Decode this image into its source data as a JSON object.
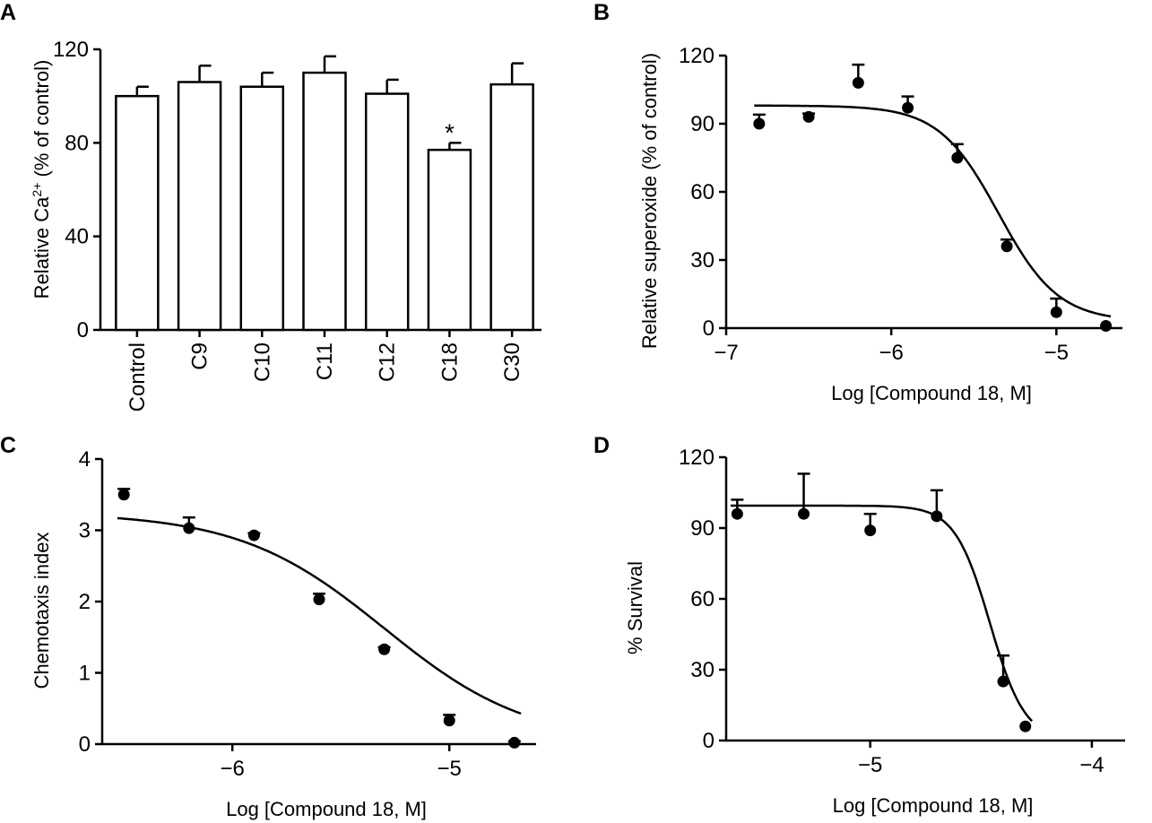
{
  "colors": {
    "ink": "#000000",
    "bar_fill": "#ffffff",
    "background": "#ffffff"
  },
  "chart_data": [
    {
      "panel": "A",
      "type": "bar",
      "categories": [
        "Control",
        "C9",
        "C10",
        "C11",
        "C12",
        "C18",
        "C30"
      ],
      "values": [
        100,
        106,
        104,
        110,
        101,
        77,
        105
      ],
      "errors": [
        4,
        7,
        6,
        7,
        6,
        3,
        9
      ],
      "annotations": [
        {
          "category": "C18",
          "text": "*"
        }
      ],
      "ylabel_pre": "Relative Ca",
      "ylabel_sup": "2+",
      "ylabel_post": " (% of control)",
      "xlabel": "",
      "ylim": [
        0,
        120
      ],
      "yticks": [
        0,
        40,
        80,
        120
      ],
      "ytick_labels": [
        "0",
        "40",
        "80",
        "120"
      ]
    },
    {
      "panel": "B",
      "type": "scatter",
      "x": [
        -6.8,
        -6.5,
        -6.2,
        -5.9,
        -5.6,
        -5.3,
        -5.0,
        -4.7
      ],
      "y": [
        90,
        93,
        108,
        97,
        75,
        36,
        7,
        1
      ],
      "errors": [
        4,
        1.5,
        8,
        5,
        6,
        3,
        6,
        0
      ],
      "fit": {
        "model": "four-parameter logistic",
        "top": 98,
        "bottom": 3,
        "log_ic50": -5.35,
        "hill_slope": -2.4
      },
      "xlabel": "Log [Compound 18, M]",
      "ylabel": "Relative superoxide (% of control)",
      "xlim": [
        -7.0,
        -4.6
      ],
      "ylim": [
        0,
        120
      ],
      "xticks": [
        -7,
        -6,
        -5
      ],
      "xtick_labels": [
        "-7",
        "-6",
        "-5"
      ],
      "yticks": [
        0,
        30,
        60,
        90,
        120
      ],
      "ytick_labels": [
        "0",
        "30",
        "60",
        "90",
        "120"
      ]
    },
    {
      "panel": "C",
      "type": "scatter",
      "x": [
        -6.5,
        -6.2,
        -5.9,
        -5.6,
        -5.3,
        -5.0,
        -4.7
      ],
      "y": [
        3.5,
        3.03,
        2.93,
        2.03,
        1.33,
        0.33,
        0.02
      ],
      "errors": [
        0.08,
        0.15,
        0.03,
        0.08,
        0.03,
        0.08,
        0.02
      ],
      "fit": {
        "model": "four-parameter logistic",
        "top": 3.25,
        "bottom": 0,
        "log_ic50": -5.3,
        "hill_slope": -1.3
      },
      "xlabel": "Log [Compound 18, M]",
      "ylabel": "Chemotaxis index",
      "xlim": [
        -6.6,
        -4.6
      ],
      "ylim": [
        0,
        4
      ],
      "xticks": [
        -6,
        -5
      ],
      "xtick_labels": [
        "-6",
        "-5"
      ],
      "yticks": [
        0,
        1,
        2,
        3,
        4
      ],
      "ytick_labels": [
        "0",
        "1",
        "2",
        "3",
        "4"
      ]
    },
    {
      "panel": "D",
      "type": "scatter",
      "x": [
        -5.6,
        -5.3,
        -5.0,
        -4.7,
        -4.4,
        -4.3
      ],
      "y": [
        96,
        96,
        89,
        95,
        25,
        6
      ],
      "errors": [
        6,
        17,
        7,
        11,
        11,
        0
      ],
      "fit": {
        "model": "four-parameter logistic",
        "top": 99.5,
        "bottom": 0,
        "log_ic50": -4.46,
        "hill_slope": -5.5
      },
      "xlabel": "Log [Compound 18, M]",
      "ylabel": "% Survival",
      "xlim": [
        -5.65,
        -3.85
      ],
      "ylim": [
        0,
        120
      ],
      "xticks": [
        -5,
        -4
      ],
      "xtick_labels": [
        "-5",
        "-4"
      ],
      "yticks": [
        0,
        30,
        60,
        90,
        120
      ],
      "ytick_labels": [
        "0",
        "30",
        "60",
        "90",
        "120"
      ]
    }
  ]
}
